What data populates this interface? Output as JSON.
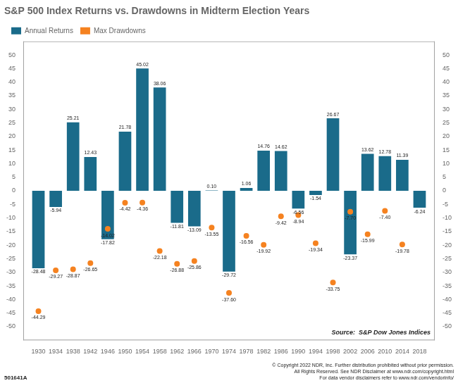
{
  "chart_data": {
    "type": "bar",
    "title": "S&P 500 Index Returns vs. Drawdowns in Midterm Election Years",
    "x": [
      1930,
      1934,
      1938,
      1942,
      1946,
      1950,
      1954,
      1958,
      1962,
      1966,
      1970,
      1974,
      1978,
      1982,
      1986,
      1990,
      1994,
      1998,
      2002,
      2006,
      2010,
      2014,
      2018
    ],
    "series": [
      {
        "name": "Annual Returns",
        "type": "bar",
        "color": "#1a6b8a",
        "values": [
          -28.48,
          -5.94,
          25.21,
          12.43,
          -17.82,
          21.78,
          45.02,
          38.06,
          -11.81,
          -13.09,
          0.1,
          -29.72,
          1.06,
          14.76,
          14.62,
          -6.56,
          -1.54,
          26.67,
          -23.37,
          13.62,
          12.78,
          11.39,
          -6.24
        ],
        "value_labels": [
          "-28.48",
          "-5.94",
          "25.21",
          "12.43",
          "-17.82",
          "21.78",
          "45.02",
          "38.06",
          "-11.81",
          "-13.09",
          "0.10",
          "-29.72",
          "1.06",
          "14.76",
          "14.62",
          "-6.56",
          "-1.54",
          "26.67",
          "-23.37",
          "13.62",
          "12.78",
          "11.39",
          "-6.24"
        ]
      },
      {
        "name": "Max Drawdowns",
        "type": "scatter",
        "color": "#f58220",
        "marker": "circle",
        "values": [
          -44.29,
          -29.27,
          -28.87,
          -26.65,
          -14.02,
          -4.42,
          -4.36,
          -22.18,
          -26.88,
          -25.86,
          -13.55,
          -37.6,
          -16.56,
          -19.92,
          -9.42,
          -8.94,
          -19.34,
          -33.75,
          -7.7,
          -15.99,
          -7.4,
          -19.78,
          null
        ],
        "value_labels": [
          "-44.29",
          "-29.27",
          "-28.87",
          "-26.65",
          "-14.02",
          "-4.42",
          "-4.36",
          "-22.18",
          "-26.88",
          "-25.86",
          "-13.55",
          "-37.60",
          "-16.56",
          "-19.92",
          "-9.42",
          "-8.94",
          "-19.34",
          "-33.75",
          "-7.70",
          "-15.99",
          "-7.40",
          "-19.78",
          null
        ]
      }
    ],
    "xlim": [
      1926.5,
      2021.5
    ],
    "xticks": [
      1930,
      1934,
      1938,
      1942,
      1946,
      1950,
      1954,
      1958,
      1962,
      1966,
      1970,
      1974,
      1978,
      1982,
      1986,
      1990,
      1994,
      1998,
      2002,
      2006,
      2010,
      2014,
      2018
    ],
    "ylim": [
      -55,
      55
    ],
    "yticks": [
      -50,
      -45,
      -40,
      -35,
      -30,
      -25,
      -20,
      -15,
      -10,
      -5,
      0,
      5,
      10,
      15,
      20,
      25,
      30,
      35,
      40,
      45,
      50
    ],
    "y2lim": [
      -55,
      55
    ],
    "y2ticks": [
      -50,
      -45,
      -40,
      -35,
      -30,
      -25,
      -20,
      -15,
      -10,
      -5,
      0,
      5,
      10,
      15,
      20,
      25,
      30,
      35,
      40,
      45,
      50
    ],
    "grid": false,
    "legend": "upper left",
    "data_labels": true,
    "annotations": [
      "Source:  S&P Dow Jones Indices",
      "501641A",
      "© Copyright 2022 NDR, Inc. Further distribution prohibited without prior permission.",
      "All Rights Reserved. See NDR Disclaimer at www.ndr.com/copyright.html",
      "For data vendor disclaimers refer to www.ndr.com/vendorinfo/"
    ]
  }
}
